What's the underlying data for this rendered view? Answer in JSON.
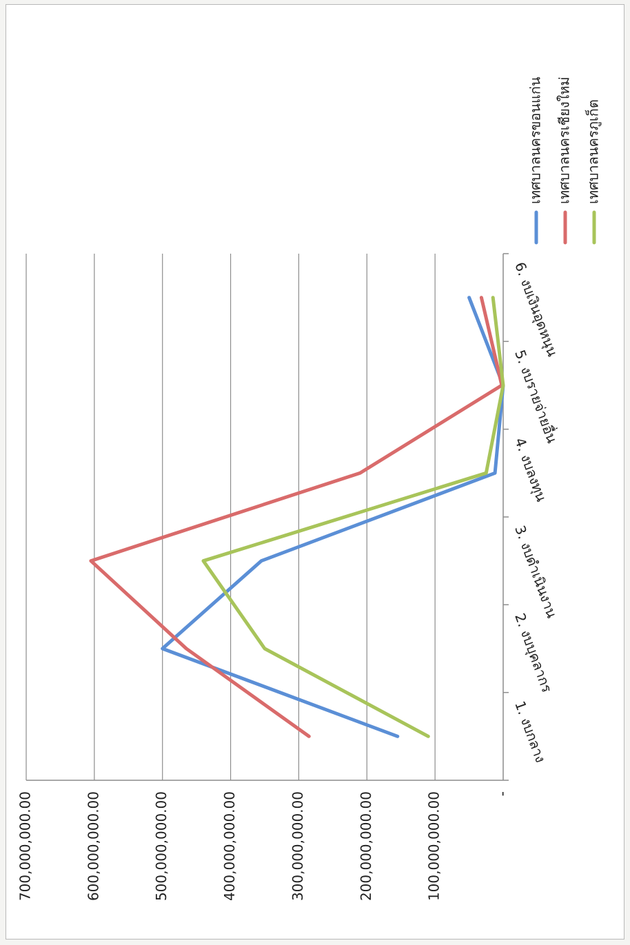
{
  "chart_data": {
    "type": "line",
    "orientation": "rotated-90-clockwise",
    "categories": [
      "1. งบกลาง",
      "2. งบบุคลากร",
      "3. งบดำเนินงาน",
      "4. งบลงทุน",
      "5. งบรายจ่ายอื่น",
      "6. งบเงินอุดหนุน"
    ],
    "y_tick_labels": [
      "-",
      "100,000,000.00",
      "200,000,000.00",
      "300,000,000.00",
      "400,000,000.00",
      "500,000,000.00",
      "600,000,000.00",
      "700,000,000.00"
    ],
    "ylim": [
      0,
      700000000
    ],
    "grid": true,
    "legend_position": "right",
    "series": [
      {
        "name": "เทศบาลนครขอนแก่น",
        "color": "#5b8fd6",
        "values": [
          155000000,
          500000000,
          355000000,
          12000000,
          0,
          50000000
        ]
      },
      {
        "name": "เทศบาลนครเชียงใหม่",
        "color": "#d96b6b",
        "values": [
          285000000,
          465000000,
          605000000,
          210000000,
          2000000,
          32000000
        ]
      },
      {
        "name": "เทศบาลนครภูเก็ต",
        "color": "#a8c45a",
        "values": [
          110000000,
          350000000,
          440000000,
          25000000,
          0,
          15000000
        ]
      }
    ]
  }
}
